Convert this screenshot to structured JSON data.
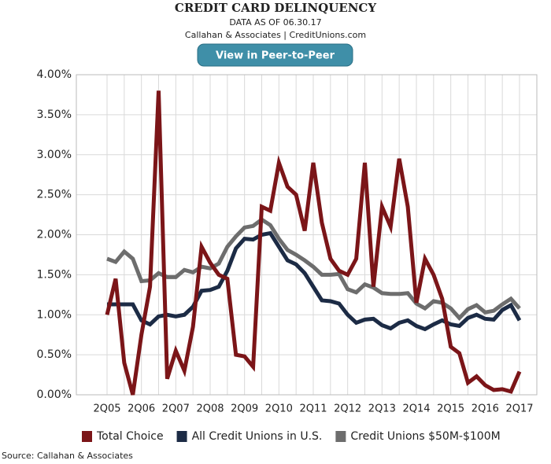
{
  "chart_data": {
    "type": "line",
    "title": "CREDIT CARD DELINQUENCY",
    "subtitle": "DATA AS OF 06.30.17",
    "credit": "Callahan & Associates | CreditUnions.com",
    "source": "Source: Callahan & Associates",
    "categories": [
      "2Q05",
      null,
      null,
      null,
      "2Q06",
      null,
      null,
      null,
      "2Q07",
      null,
      null,
      null,
      "2Q08",
      null,
      null,
      null,
      "2Q09",
      null,
      null,
      null,
      "2Q10",
      null,
      null,
      null,
      "2Q11",
      null,
      null,
      null,
      "2Q12",
      null,
      null,
      null,
      "2Q13",
      null,
      null,
      null,
      "2Q14",
      null,
      null,
      null,
      "2Q15",
      null,
      null,
      null,
      "2Q16",
      null,
      null,
      null,
      "2Q17"
    ],
    "series": [
      {
        "name": "Total Choice",
        "color": "#7b1518",
        "values": [
          1.0,
          1.45,
          0.4,
          0.0,
          0.75,
          1.35,
          3.8,
          0.2,
          0.55,
          0.3,
          0.85,
          1.85,
          1.65,
          1.5,
          1.45,
          0.5,
          0.48,
          0.35,
          2.35,
          2.3,
          2.9,
          2.6,
          2.5,
          2.05,
          2.9,
          2.15,
          1.7,
          1.55,
          1.5,
          1.7,
          2.9,
          1.35,
          2.35,
          2.1,
          2.95,
          2.35,
          1.15,
          1.7,
          1.5,
          1.2,
          0.6,
          0.52,
          0.15,
          0.23,
          0.12,
          0.06,
          0.07,
          0.04,
          0.29
        ]
      },
      {
        "name": "All Credit Unions in U.S.",
        "color": "#1c2b45",
        "values": [
          1.13,
          1.13,
          1.13,
          1.13,
          0.93,
          0.88,
          0.98,
          1.0,
          0.98,
          1.0,
          1.1,
          1.3,
          1.31,
          1.35,
          1.55,
          1.83,
          1.95,
          1.94,
          2.0,
          2.02,
          1.85,
          1.68,
          1.63,
          1.52,
          1.35,
          1.18,
          1.17,
          1.14,
          1.0,
          0.9,
          0.94,
          0.95,
          0.87,
          0.83,
          0.9,
          0.93,
          0.86,
          0.82,
          0.88,
          0.93,
          0.88,
          0.86,
          0.96,
          1.0,
          0.95,
          0.94,
          1.06,
          1.12,
          0.93
        ]
      },
      {
        "name": "Credit Unions $50M-$100M",
        "color": "#6d6d6d",
        "values": [
          1.7,
          1.66,
          1.79,
          1.7,
          1.42,
          1.43,
          1.52,
          1.47,
          1.47,
          1.56,
          1.53,
          1.6,
          1.58,
          1.64,
          1.85,
          1.98,
          2.09,
          2.11,
          2.19,
          2.12,
          1.95,
          1.81,
          1.75,
          1.68,
          1.6,
          1.5,
          1.5,
          1.51,
          1.32,
          1.28,
          1.38,
          1.34,
          1.27,
          1.26,
          1.26,
          1.27,
          1.14,
          1.08,
          1.17,
          1.15,
          1.08,
          0.96,
          1.07,
          1.12,
          1.03,
          1.05,
          1.13,
          1.2,
          1.08
        ]
      }
    ],
    "ylim": [
      0,
      4
    ],
    "yticks": [
      {
        "value": 0,
        "label": "0.00%"
      },
      {
        "value": 0.5,
        "label": "0.50%"
      },
      {
        "value": 1,
        "label": "1.00%"
      },
      {
        "value": 1.5,
        "label": "1.50%"
      },
      {
        "value": 2,
        "label": "2.00%"
      },
      {
        "value": 2.5,
        "label": "2.50%"
      },
      {
        "value": 3,
        "label": "3.00%"
      },
      {
        "value": 3.5,
        "label": "3.50%"
      },
      {
        "value": 4,
        "label": "4.00%"
      }
    ],
    "grid": true,
    "legend": "bottom"
  },
  "button": "View in Peer-to-Peer"
}
